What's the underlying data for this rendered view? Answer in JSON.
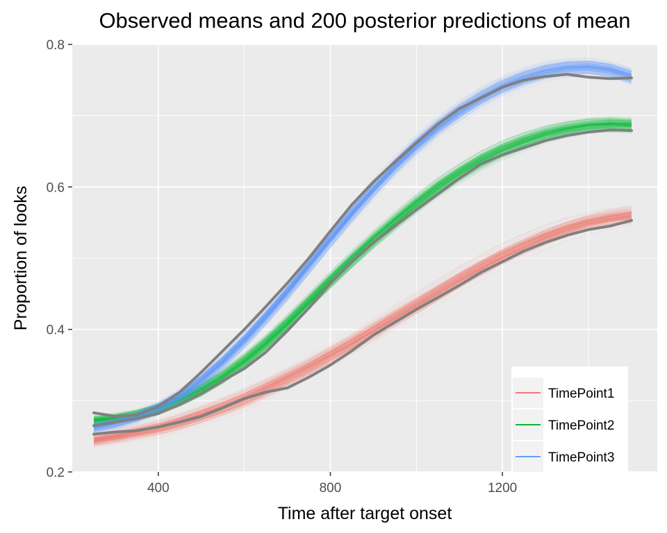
{
  "chart_data": {
    "type": "line",
    "title": "Observed means and 200 posterior predictions of mean",
    "xlabel": "Time after target onset",
    "ylabel": "Proportion of looks",
    "xlim": [
      200,
      1560
    ],
    "ylim": [
      0.2,
      0.8
    ],
    "x_ticks": [
      400,
      800,
      1200
    ],
    "x_tick_labels": [
      "400",
      "800",
      "1200"
    ],
    "y_ticks": [
      0.2,
      0.4,
      0.6,
      0.8
    ],
    "y_tick_labels": [
      "0.2",
      "0.4",
      "0.6",
      "0.8"
    ],
    "grid": true,
    "legend_position": "bottom-right",
    "observed_color": "#808080",
    "posterior_draws": 200,
    "x": [
      250,
      300,
      350,
      400,
      450,
      500,
      550,
      600,
      650,
      700,
      750,
      800,
      850,
      900,
      950,
      1000,
      1050,
      1100,
      1150,
      1200,
      1250,
      1300,
      1350,
      1400,
      1450,
      1500
    ],
    "series": [
      {
        "name": "TimePoint1",
        "color": "#F8766D",
        "observed": [
          0.253,
          0.256,
          0.258,
          0.263,
          0.27,
          0.278,
          0.29,
          0.303,
          0.312,
          0.318,
          0.333,
          0.35,
          0.37,
          0.392,
          0.41,
          0.428,
          0.445,
          0.462,
          0.48,
          0.495,
          0.51,
          0.522,
          0.532,
          0.54,
          0.545,
          0.553
        ],
        "predicted": [
          0.245,
          0.25,
          0.256,
          0.262,
          0.27,
          0.28,
          0.291,
          0.303,
          0.317,
          0.332,
          0.347,
          0.364,
          0.381,
          0.399,
          0.417,
          0.435,
          0.453,
          0.471,
          0.488,
          0.504,
          0.518,
          0.531,
          0.542,
          0.551,
          0.557,
          0.561
        ],
        "band": 0.016
      },
      {
        "name": "TimePoint2",
        "color": "#00BA38",
        "observed": [
          0.265,
          0.27,
          0.275,
          0.282,
          0.295,
          0.31,
          0.328,
          0.345,
          0.368,
          0.398,
          0.43,
          0.465,
          0.495,
          0.522,
          0.545,
          0.568,
          0.59,
          0.612,
          0.632,
          0.645,
          0.655,
          0.665,
          0.672,
          0.677,
          0.68,
          0.679
        ],
        "predicted": [
          0.272,
          0.275,
          0.28,
          0.288,
          0.3,
          0.315,
          0.333,
          0.355,
          0.38,
          0.408,
          0.438,
          0.468,
          0.497,
          0.525,
          0.551,
          0.576,
          0.599,
          0.619,
          0.637,
          0.652,
          0.664,
          0.674,
          0.681,
          0.686,
          0.688,
          0.687
        ],
        "band": 0.014
      },
      {
        "name": "TimePoint3",
        "color": "#619CFF",
        "observed": [
          0.283,
          0.278,
          0.28,
          0.292,
          0.312,
          0.34,
          0.37,
          0.4,
          0.432,
          0.465,
          0.5,
          0.538,
          0.575,
          0.607,
          0.635,
          0.662,
          0.688,
          0.71,
          0.725,
          0.74,
          0.75,
          0.755,
          0.758,
          0.754,
          0.752,
          0.753
        ],
        "predicted": [
          0.262,
          0.268,
          0.277,
          0.29,
          0.307,
          0.329,
          0.355,
          0.385,
          0.418,
          0.453,
          0.49,
          0.527,
          0.563,
          0.597,
          0.629,
          0.658,
          0.684,
          0.706,
          0.725,
          0.741,
          0.753,
          0.762,
          0.767,
          0.768,
          0.764,
          0.755
        ],
        "band": 0.014
      }
    ]
  }
}
